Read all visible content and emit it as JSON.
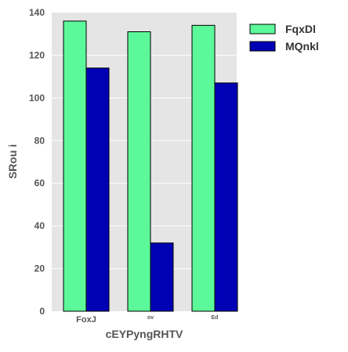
{
  "chart_data": {
    "type": "bar",
    "title": "",
    "xlabel": "cEYPyngRHTV",
    "ylabel": "SRou i",
    "categories": [
      "FoxJ",
      "ov",
      "Ed"
    ],
    "series": [
      {
        "name": "FqxDl",
        "values": [
          136,
          131,
          134
        ],
        "color": "#5cf99a"
      },
      {
        "name": "MQnkl",
        "values": [
          114,
          32,
          107
        ],
        "color": "#0000b4"
      }
    ],
    "yticks": [
      0,
      20,
      40,
      60,
      80,
      100,
      120,
      140
    ],
    "ylim": [
      0,
      140
    ],
    "grid": true,
    "legend_position": "top-right",
    "background": "#e5e5e5"
  }
}
